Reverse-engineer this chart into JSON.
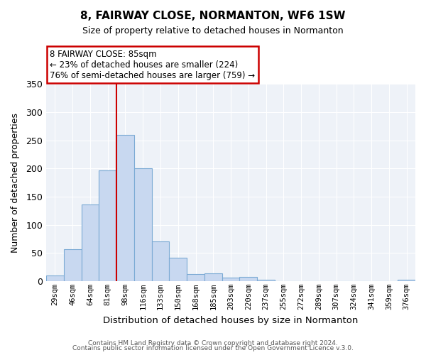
{
  "title": "8, FAIRWAY CLOSE, NORMANTON, WF6 1SW",
  "subtitle": "Size of property relative to detached houses in Normanton",
  "xlabel": "Distribution of detached houses by size in Normanton",
  "ylabel": "Number of detached properties",
  "footer_line1": "Contains HM Land Registry data © Crown copyright and database right 2024.",
  "footer_line2": "Contains public sector information licensed under the Open Government Licence v.3.0.",
  "bin_labels": [
    "29sqm",
    "46sqm",
    "64sqm",
    "81sqm",
    "98sqm",
    "116sqm",
    "133sqm",
    "150sqm",
    "168sqm",
    "185sqm",
    "203sqm",
    "220sqm",
    "237sqm",
    "255sqm",
    "272sqm",
    "289sqm",
    "307sqm",
    "324sqm",
    "341sqm",
    "359sqm",
    "376sqm"
  ],
  "bar_heights": [
    10,
    57,
    136,
    196,
    259,
    200,
    71,
    41,
    13,
    14,
    6,
    7,
    2,
    0,
    0,
    0,
    0,
    0,
    0,
    0,
    2
  ],
  "bar_color": "#c8d8f0",
  "bar_edge_color": "#7baad4",
  "vline_color": "#cc0000",
  "vline_x_idx": 3,
  "annotation_line1": "8 FAIRWAY CLOSE: 85sqm",
  "annotation_line2": "← 23% of detached houses are smaller (224)",
  "annotation_line3": "76% of semi-detached houses are larger (759) →",
  "annotation_box_color": "#ffffff",
  "annotation_box_edge": "#cc0000",
  "ylim": [
    0,
    350
  ],
  "yticks": [
    0,
    50,
    100,
    150,
    200,
    250,
    300,
    350
  ],
  "background_color": "#ffffff",
  "plot_bg_color": "#eef2f8",
  "grid_color": "#ffffff"
}
